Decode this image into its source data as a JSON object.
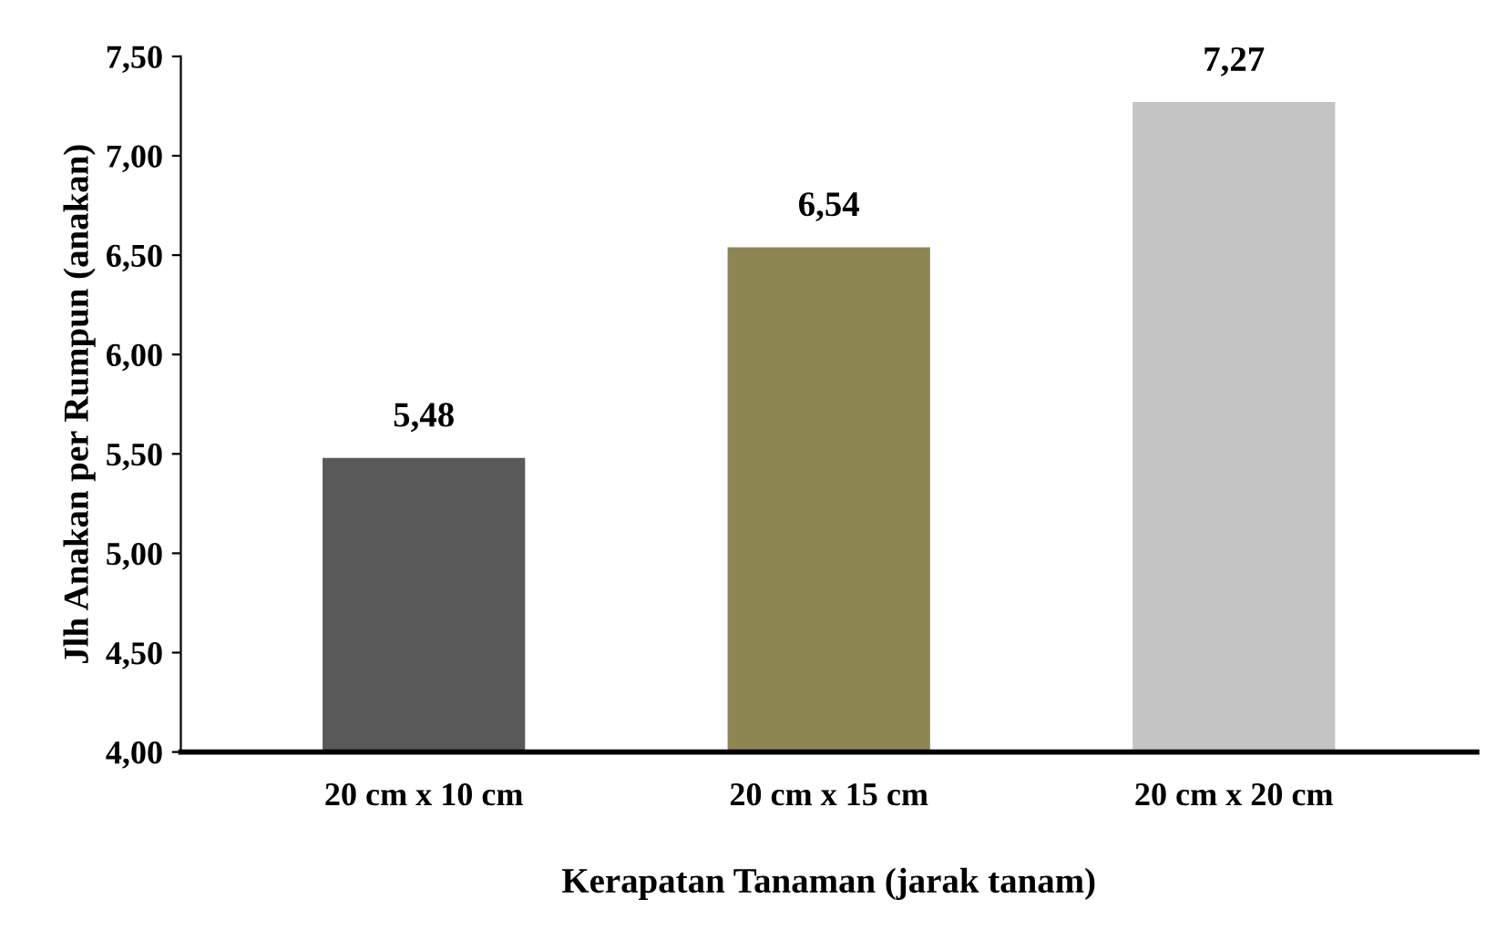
{
  "chart_data": {
    "type": "bar",
    "xlabel": "Kerapatan Tanaman (jarak tanam)",
    "ylabel": "Jlh Anakan per Rumpun (anakan)",
    "categories": [
      "20 cm x 10 cm",
      "20 cm x 15 cm",
      "20 cm x 20 cm"
    ],
    "values": [
      5.48,
      6.54,
      7.27
    ],
    "colors": [
      "#595959",
      "#8c8752",
      "#c4c4c4"
    ],
    "value_labels": [
      "5,48",
      "6,54",
      "7,27"
    ],
    "ylim": [
      4,
      7.5
    ],
    "yticks": [
      {
        "value": 4,
        "label": "4,00"
      },
      {
        "value": 4.5,
        "label": "4,50"
      },
      {
        "value": 5,
        "label": "5,00"
      },
      {
        "value": 5.5,
        "label": "5,50"
      },
      {
        "value": 6,
        "label": "6,00"
      },
      {
        "value": 6.5,
        "label": "6,50"
      },
      {
        "value": 7,
        "label": "7,00"
      },
      {
        "value": 7.5,
        "label": "7,50"
      }
    ],
    "grid": false,
    "legend": false
  }
}
